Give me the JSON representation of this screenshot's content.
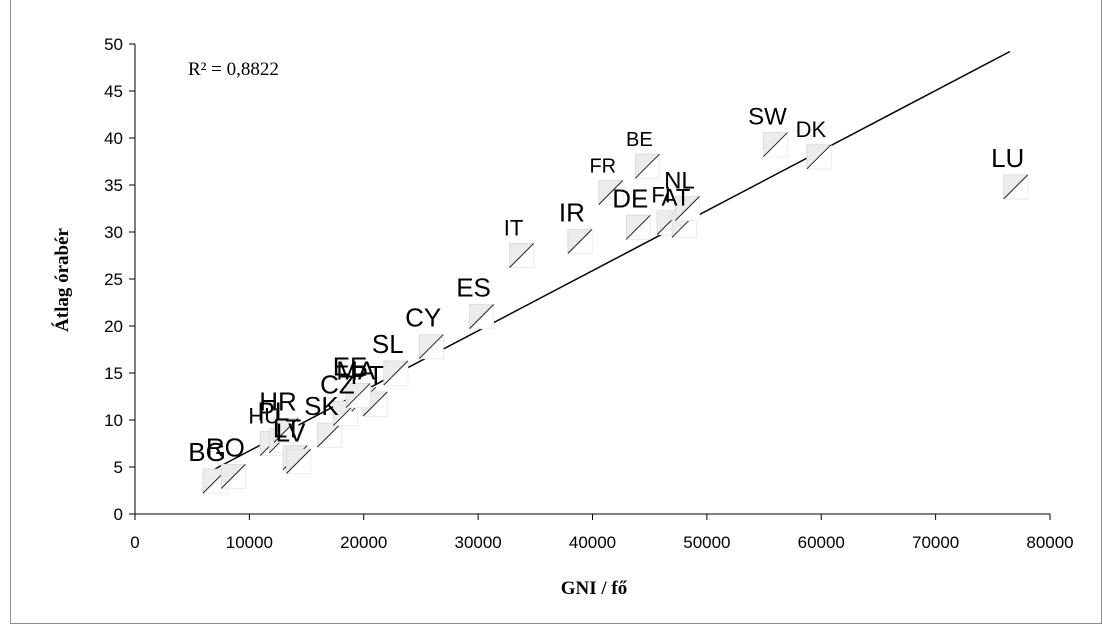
{
  "chart_data": {
    "type": "scatter",
    "xlabel": "GNI / fő",
    "ylabel": "Átlag órabér",
    "xlim": [
      0,
      80000
    ],
    "ylim": [
      0,
      50
    ],
    "xticks": [
      "0",
      "10000",
      "20000",
      "30000",
      "40000",
      "50000",
      "60000",
      "70000",
      "80000"
    ],
    "yticks": [
      "0",
      "5",
      "10",
      "15",
      "20",
      "25",
      "30",
      "35",
      "40",
      "45",
      "50"
    ],
    "annotation": "R² = 0,8822",
    "trendline": {
      "x": [
        7000,
        76500
      ],
      "y": [
        4.8,
        49.2
      ]
    },
    "grid": false,
    "points": [
      {
        "label": "BG",
        "x": 7000,
        "y": 3.5,
        "size": 26
      },
      {
        "label": "RO",
        "x": 8600,
        "y": 4.0,
        "size": 26
      },
      {
        "label": "HU",
        "x": 12000,
        "y": 7.5,
        "size": 22
      },
      {
        "label": "PL",
        "x": 12800,
        "y": 7.8,
        "size": 26
      },
      {
        "label": "HR",
        "x": 13200,
        "y": 8.9,
        "size": 26
      },
      {
        "label": "LT",
        "x": 14000,
        "y": 6.0,
        "size": 26
      },
      {
        "label": "LV",
        "x": 14300,
        "y": 5.6,
        "size": 26
      },
      {
        "label": "SK",
        "x": 17000,
        "y": 8.4,
        "size": 26
      },
      {
        "label": "CZ",
        "x": 18400,
        "y": 10.7,
        "size": 26
      },
      {
        "label": "MA",
        "x": 20000,
        "y": 12.2,
        "size": 26
      },
      {
        "label": "PT",
        "x": 21000,
        "y": 11.7,
        "size": 26
      },
      {
        "label": "EE",
        "x": 19500,
        "y": 12.6,
        "size": 26
      },
      {
        "label": "SL",
        "x": 22800,
        "y": 15.0,
        "size": 26
      },
      {
        "label": "CY",
        "x": 25900,
        "y": 17.8,
        "size": 26
      },
      {
        "label": "ES",
        "x": 30300,
        "y": 21.0,
        "size": 26
      },
      {
        "label": "IT",
        "x": 33800,
        "y": 27.5,
        "size": 22
      },
      {
        "label": "IR",
        "x": 38900,
        "y": 29.0,
        "size": 26
      },
      {
        "label": "FR",
        "x": 41600,
        "y": 34.2,
        "size": 20
      },
      {
        "label": "DE",
        "x": 44000,
        "y": 30.5,
        "size": 26
      },
      {
        "label": "BE",
        "x": 44800,
        "y": 37.0,
        "size": 20
      },
      {
        "label": "FI",
        "x": 46700,
        "y": 31.0,
        "size": 22
      },
      {
        "label": "AT",
        "x": 48000,
        "y": 30.7,
        "size": 24
      },
      {
        "label": "NL",
        "x": 48300,
        "y": 32.5,
        "size": 24
      },
      {
        "label": "SW",
        "x": 56000,
        "y": 39.3,
        "size": 24
      },
      {
        "label": "DK",
        "x": 59800,
        "y": 38.0,
        "size": 22
      },
      {
        "label": "LU",
        "x": 77000,
        "y": 34.8,
        "size": 26
      }
    ]
  }
}
